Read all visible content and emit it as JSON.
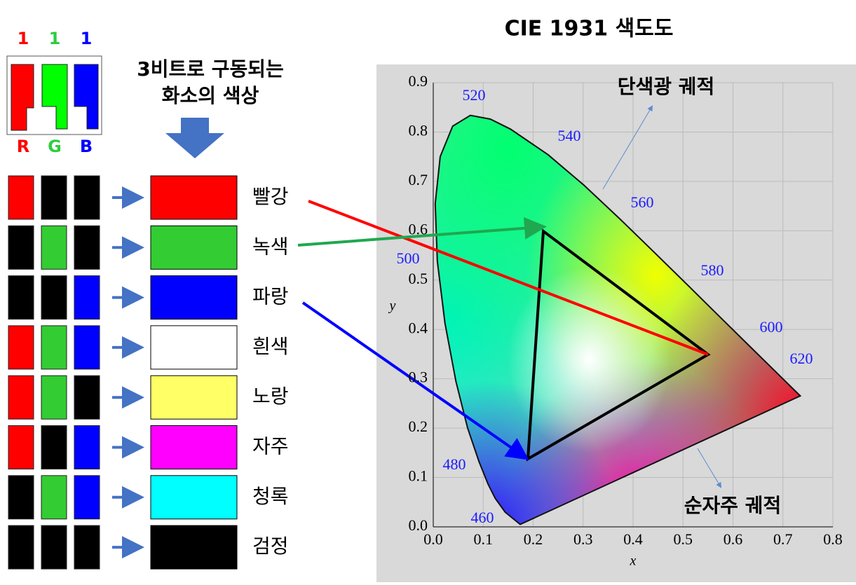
{
  "header": {
    "bits": [
      "1",
      "1",
      "1"
    ],
    "letters": [
      "R",
      "G",
      "B"
    ],
    "title_lines": [
      "3비트로 구동되는",
      "화소의 색상"
    ]
  },
  "rows": [
    {
      "label": "빨강"
    },
    {
      "label": "녹색"
    },
    {
      "label": "파랑"
    },
    {
      "label": "흰색"
    },
    {
      "label": "노랑"
    },
    {
      "label": "자주"
    },
    {
      "label": "청록"
    },
    {
      "label": "검정"
    }
  ],
  "cie": {
    "title": "CIE 1931 색도도",
    "xticks": [
      "0.0",
      "0.1",
      "0.2",
      "0.3",
      "0.4",
      "0.5",
      "0.6",
      "0.7",
      "0.8"
    ],
    "yticks": [
      "0.0",
      "0.1",
      "0.2",
      "0.3",
      "0.4",
      "0.5",
      "0.6",
      "0.7",
      "0.8",
      "0.9"
    ],
    "x_label": "x",
    "y_label": "y",
    "wavelengths": [
      "520",
      "540",
      "560",
      "580",
      "600",
      "620",
      "500",
      "480",
      "460"
    ],
    "locus_labels": [
      "단색광 궤적",
      "순자주 궤적"
    ]
  }
}
